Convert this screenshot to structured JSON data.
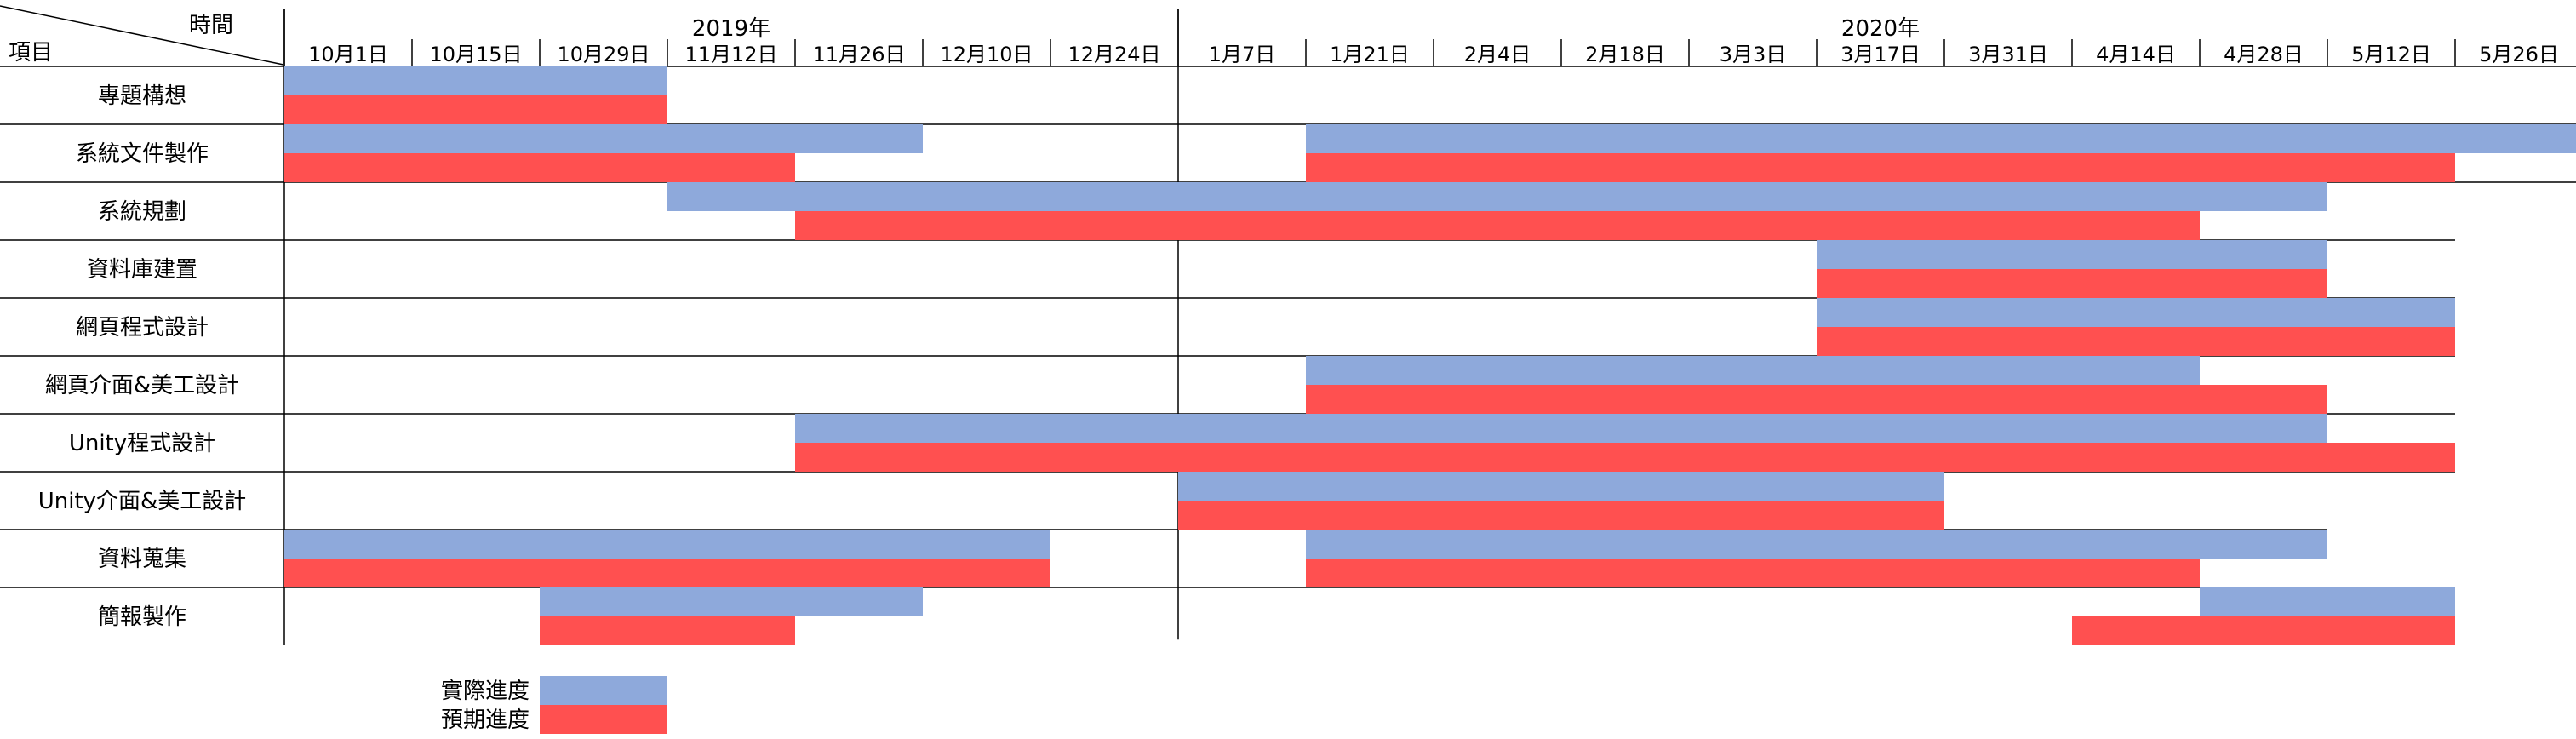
{
  "corner": {
    "top_label": "時間",
    "bottom_label": "項目"
  },
  "chart_data": {
    "type": "gantt",
    "years": [
      {
        "label": "2019年",
        "from_tick": 0,
        "to_tick": 7
      },
      {
        "label": "2020年",
        "from_tick": 7,
        "to_tick": 18
      }
    ],
    "x_ticks": [
      "10月1日",
      "10月15日",
      "10月29日",
      "11月12日",
      "11月26日",
      "12月10日",
      "12月24日",
      "1月7日",
      "1月21日",
      "2月4日",
      "2月18日",
      "3月3日",
      "3月17日",
      "3月31日",
      "4月14日",
      "4月28日",
      "5月12日",
      "5月26日"
    ],
    "tasks": [
      "專題構想",
      "系統文件製作",
      "系統規劃",
      "資料庫建置",
      "網頁程式設計",
      "網頁介面&美工設計",
      "Unity程式設計",
      "Unity介面&美工設計",
      "資料蒐集",
      "簡報製作"
    ],
    "series": [
      {
        "name": "實際進度",
        "color": "#8EA9DB",
        "bars": [
          [
            [
              0,
              3
            ]
          ],
          [
            [
              0,
              5
            ],
            [
              8,
              18
            ]
          ],
          [
            [
              3,
              16
            ]
          ],
          [
            [
              12,
              16
            ]
          ],
          [
            [
              12,
              17
            ]
          ],
          [
            [
              8,
              15
            ]
          ],
          [
            [
              4,
              16
            ]
          ],
          [
            [
              7,
              13
            ]
          ],
          [
            [
              0,
              6
            ],
            [
              8,
              16
            ]
          ],
          [
            [
              2,
              5
            ],
            [
              15,
              17
            ]
          ]
        ]
      },
      {
        "name": "預期進度",
        "color": "#FF5050",
        "bars": [
          [
            [
              0,
              3
            ]
          ],
          [
            [
              0,
              4
            ],
            [
              8,
              17
            ]
          ],
          [
            [
              4,
              15
            ]
          ],
          [
            [
              12,
              16
            ]
          ],
          [
            [
              12,
              17
            ]
          ],
          [
            [
              8,
              16
            ]
          ],
          [
            [
              4,
              17
            ]
          ],
          [
            [
              7,
              13
            ]
          ],
          [
            [
              0,
              6
            ],
            [
              8,
              15
            ]
          ],
          [
            [
              2,
              4
            ],
            [
              14,
              17
            ]
          ]
        ]
      }
    ],
    "row_extents": [
      18,
      18,
      17,
      17,
      17,
      17,
      17,
      16,
      16,
      17
    ]
  }
}
